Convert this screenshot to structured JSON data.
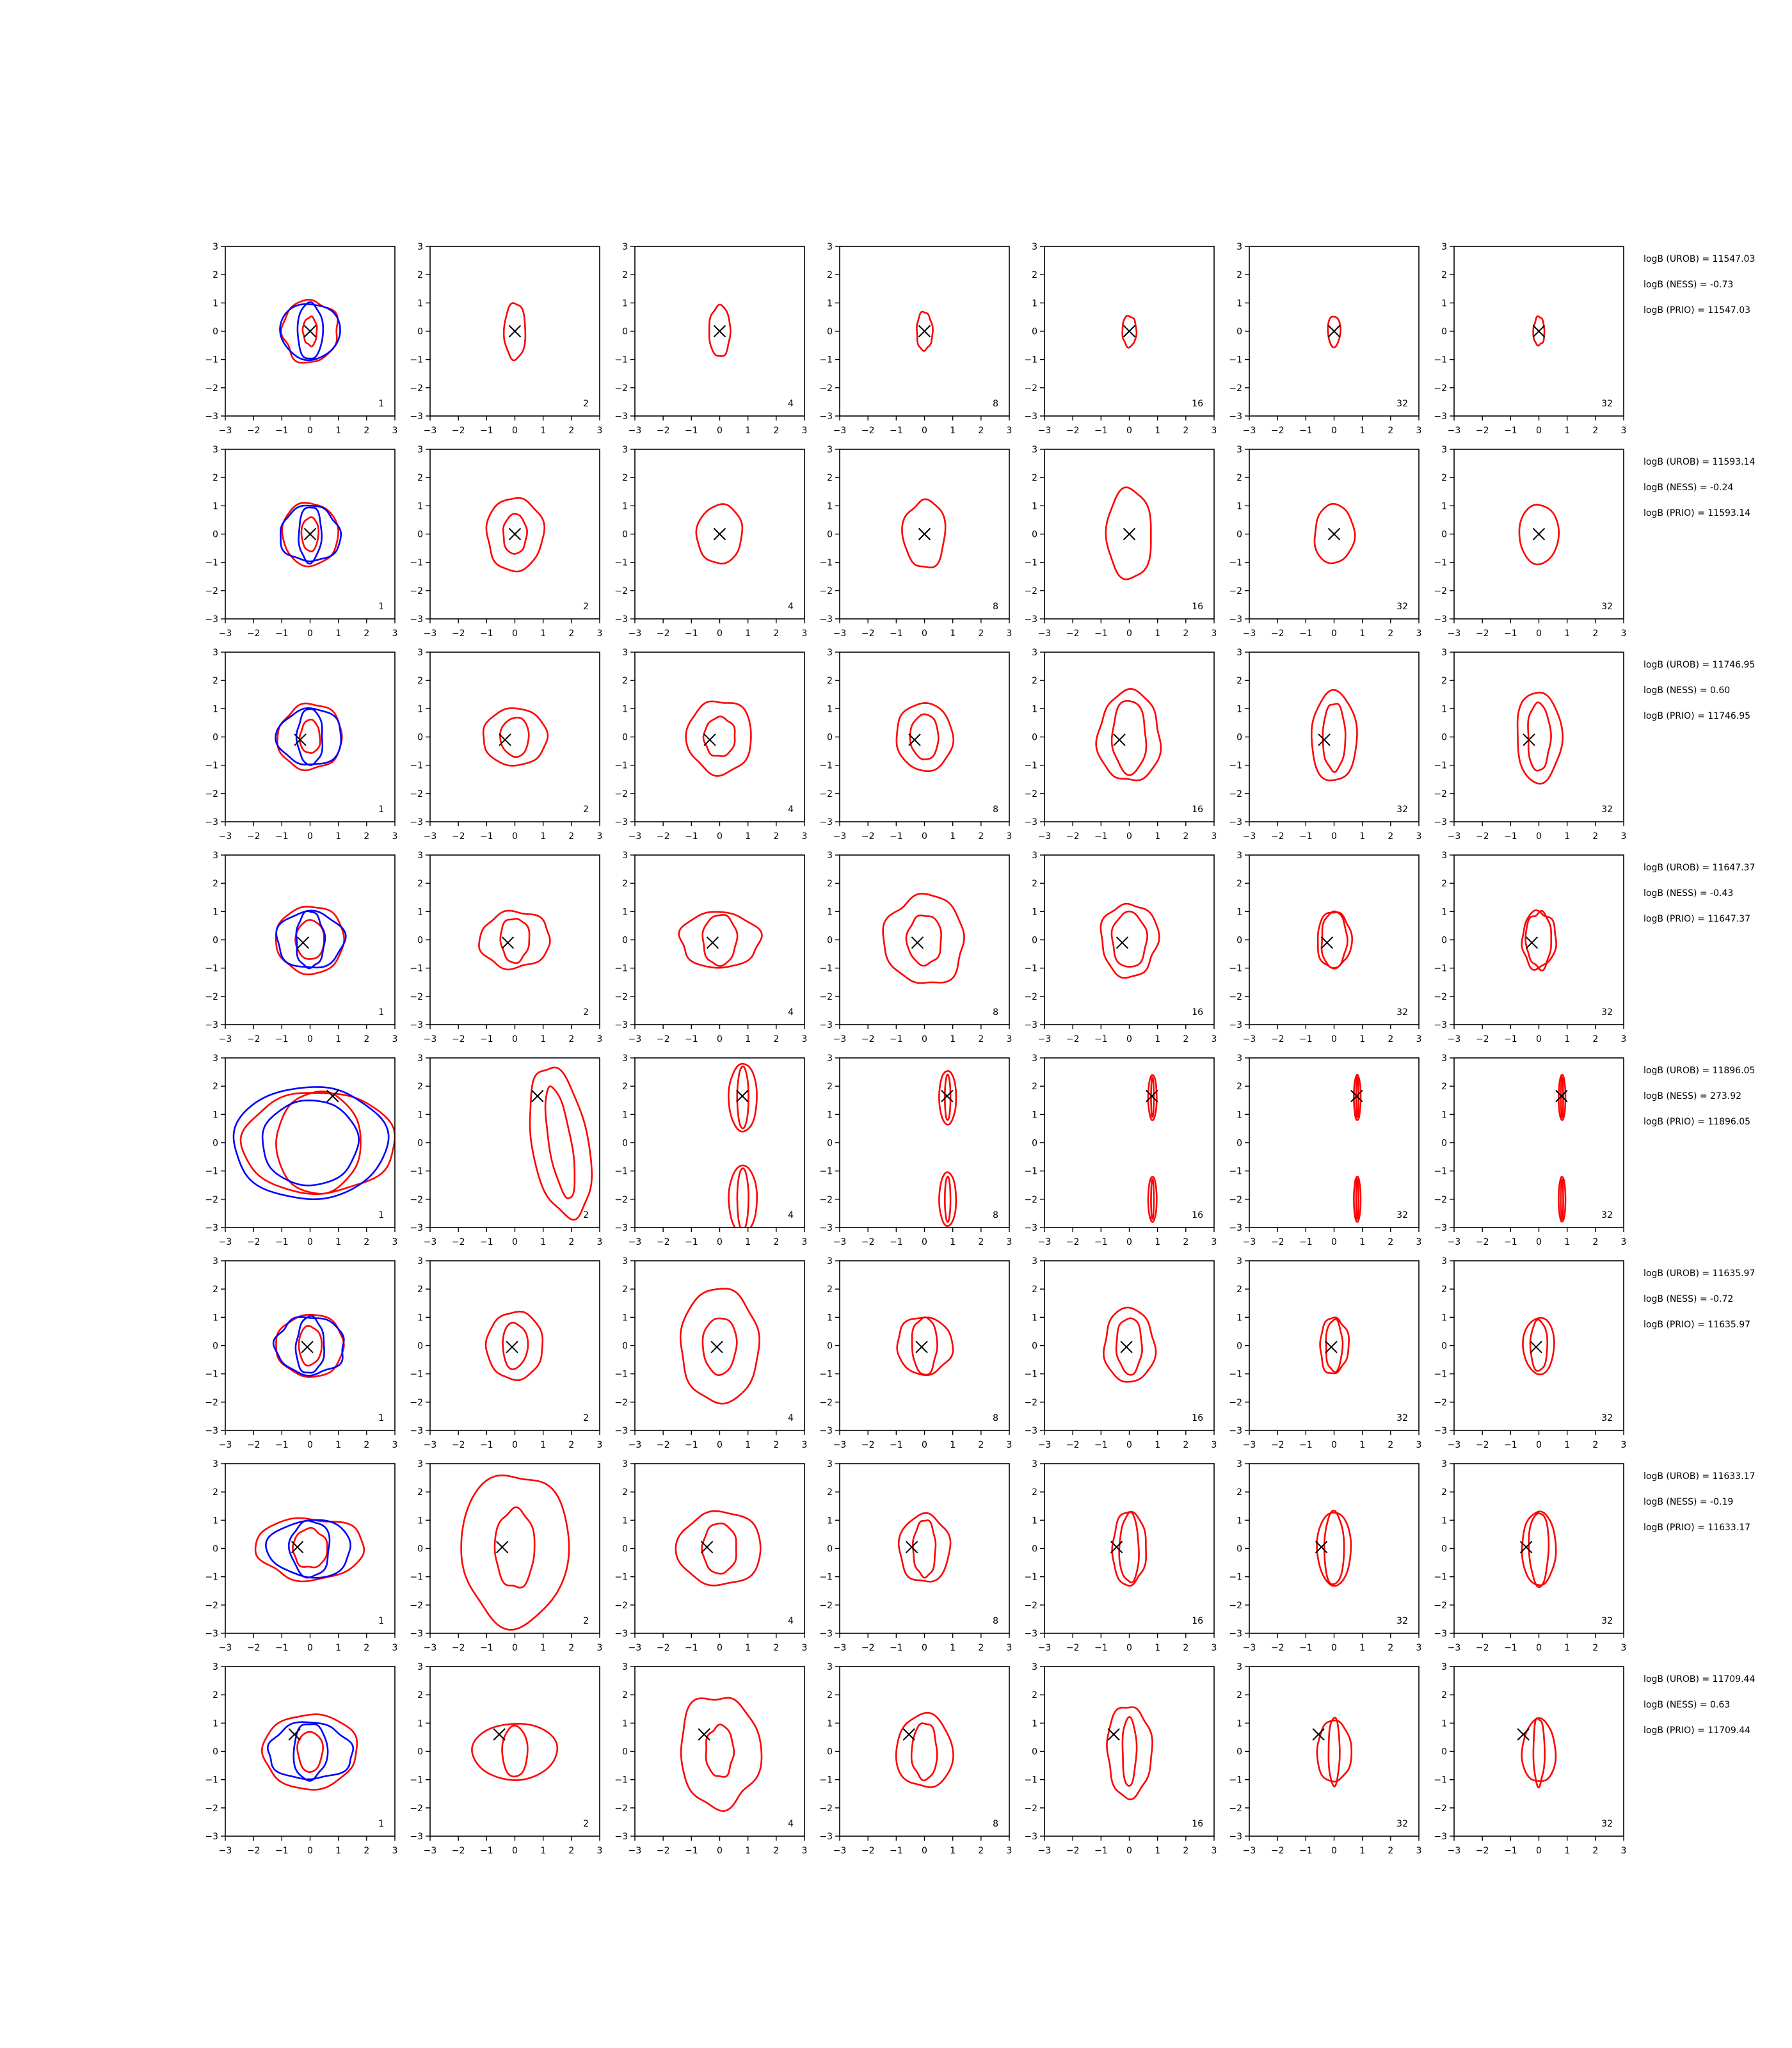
{
  "figure": {
    "rows": 8,
    "cols": 7,
    "xlim": [
      -3,
      3
    ],
    "ylim": [
      -3,
      3
    ],
    "ticks": [
      -3,
      -2,
      -1,
      0,
      1,
      2,
      3
    ],
    "colors": {
      "prior": "#0000ff",
      "posterior": "#ff0000",
      "marker": "#000000"
    }
  },
  "panel_labels": [
    "1",
    "2",
    "4",
    "8",
    "16",
    "32",
    "32"
  ],
  "chart_data": {
    "type": "contour",
    "rows": [
      {
        "marker": [
          0.0,
          0.0
        ],
        "annotations": [
          "logB (UROB) = 11547.03",
          "logB (NESS) = -0.73",
          "logB (PRIO) = 11547.03"
        ],
        "blue": [
          [
            0.45,
            1.0
          ],
          [
            1.05,
            1.0
          ]
        ],
        "red": [
          [
            [
              0.25,
              0.5
            ],
            [
              1.0,
              1.08
            ]
          ],
          [
            [
              0.38,
              1.0
            ]
          ],
          [
            [
              0.38,
              0.9
            ]
          ],
          [
            [
              0.28,
              0.68
            ]
          ],
          [
            [
              0.25,
              0.55
            ]
          ],
          [
            [
              0.22,
              0.55
            ]
          ],
          [
            [
              0.2,
              0.5
            ]
          ]
        ]
      },
      {
        "marker": [
          0.0,
          0.0
        ],
        "annotations": [
          "logB (UROB) = 11593.14",
          "logB (NESS) = -0.24",
          "logB (PRIO) = 11593.14"
        ],
        "blue": [
          [
            0.4,
            1.0
          ],
          [
            1.05,
            1.0
          ]
        ],
        "red": [
          [
            [
              0.3,
              0.6
            ],
            [
              1.0,
              1.1
            ]
          ],
          [
            [
              0.42,
              0.7
            ],
            [
              1.0,
              1.3
            ]
          ],
          [
            [
              0.8,
              1.05
            ]
          ],
          [
            [
              0.75,
              1.2
            ]
          ],
          [
            [
              0.8,
              1.6
            ]
          ],
          [
            [
              0.7,
              1.05
            ]
          ],
          [
            [
              0.7,
              1.05
            ]
          ]
        ]
      },
      {
        "marker": [
          -0.35,
          -0.1
        ],
        "annotations": [
          "logB (UROB) = 11746.95",
          "logB (NESS) = 0.60",
          "logB (PRIO) = 11746.95"
        ],
        "blue": [
          [
            0.45,
            1.0
          ],
          [
            1.15,
            1.0
          ]
        ],
        "red": [
          [
            [
              0.35,
              0.6
            ],
            [
              1.15,
              1.15
            ]
          ],
          [
            [
              0.5,
              0.7
            ],
            [
              1.15,
              1.0
            ]
          ],
          [
            [
              0.55,
              0.7
            ],
            [
              1.15,
              1.3
            ]
          ],
          [
            [
              0.5,
              0.8
            ],
            [
              1.0,
              1.2
            ]
          ],
          [
            [
              0.6,
              1.3
            ],
            [
              1.1,
              1.6
            ]
          ],
          [
            [
              0.4,
              1.2
            ],
            [
              0.8,
              1.6
            ]
          ],
          [
            [
              0.4,
              1.2
            ],
            [
              0.8,
              1.6
            ]
          ]
        ]
      },
      {
        "marker": [
          -0.25,
          -0.1
        ],
        "annotations": [
          "logB (UROB) = 11647.37",
          "logB (NESS) = -0.43",
          "logB (PRIO) = 11647.37"
        ],
        "blue": [
          [
            0.5,
            1.0
          ],
          [
            1.2,
            1.0
          ]
        ],
        "red": [
          [
            [
              0.5,
              0.7
            ],
            [
              1.2,
              1.2
            ]
          ],
          [
            [
              0.5,
              0.8
            ],
            [
              1.25,
              1.0
            ]
          ],
          [
            [
              0.6,
              0.9
            ],
            [
              1.4,
              1.0
            ]
          ],
          [
            [
              0.6,
              0.9
            ],
            [
              1.4,
              1.6
            ]
          ],
          [
            [
              0.6,
              1.0
            ],
            [
              1.0,
              1.3
            ]
          ],
          [
            [
              0.45,
              1.0
            ],
            [
              0.6,
              1.0
            ]
          ],
          [
            [
              0.45,
              1.0
            ],
            [
              0.6,
              1.0
            ]
          ]
        ]
      },
      {
        "marker": [
          0.8,
          1.65
        ],
        "annotations": [
          "logB (UROB) = 11896.05",
          "logB (NESS) = 273.92",
          "logB (PRIO) = 11896.05"
        ],
        "blue": [
          [
            1.7,
            1.5
          ],
          [
            2.7,
            2.0
          ]
        ],
        "red": [
          [
            [
              1.5,
              1.8
            ],
            [
              2.7,
              1.8
            ]
          ],
          [
            [
              0.4,
              2.0
            ],
            [
              1.0,
              2.7
            ]
          ],
          [
            [
              0.2,
              1.1
            ],
            [
              0.5,
              1.2
            ]
          ],
          [
            [
              0.1,
              0.8
            ],
            [
              0.3,
              0.95
            ]
          ],
          [
            [
              0.05,
              0.7
            ],
            [
              0.15,
              0.8
            ]
          ],
          [
            [
              0.04,
              0.7
            ],
            [
              0.12,
              0.8
            ]
          ],
          [
            [
              0.04,
              0.7
            ],
            [
              0.12,
              0.8
            ]
          ]
        ]
      },
      {
        "marker": [
          -0.1,
          -0.05
        ],
        "annotations": [
          "logB (UROB) = 11635.97",
          "logB (NESS) = -0.72",
          "logB (PRIO) = 11635.97"
        ],
        "blue": [
          [
            0.5,
            1.0
          ],
          [
            1.25,
            1.0
          ]
        ],
        "red": [
          [
            [
              0.4,
              0.7
            ],
            [
              1.2,
              1.1
            ]
          ],
          [
            [
              0.45,
              0.8
            ],
            [
              1.0,
              1.2
            ]
          ],
          [
            [
              0.6,
              1.0
            ],
            [
              1.4,
              2.0
            ]
          ],
          [
            [
              0.45,
              1.0
            ],
            [
              1.0,
              1.0
            ]
          ],
          [
            [
              0.45,
              1.0
            ],
            [
              0.9,
              1.3
            ]
          ],
          [
            [
              0.3,
              0.9
            ],
            [
              0.5,
              1.0
            ]
          ],
          [
            [
              0.3,
              0.9
            ],
            [
              0.55,
              1.0
            ]
          ]
        ]
      },
      {
        "marker": [
          -0.45,
          0.05
        ],
        "annotations": [
          "logB (UROB) = 11633.17",
          "logB (NESS) = -0.19",
          "logB (PRIO) = 11633.17"
        ],
        "blue": [
          [
            0.7,
            1.0
          ],
          [
            1.5,
            1.0
          ]
        ],
        "red": [
          [
            [
              0.6,
              0.7
            ],
            [
              1.9,
              1.1
            ]
          ],
          [
            [
              0.7,
              1.4
            ],
            [
              1.9,
              2.7
            ]
          ],
          [
            [
              0.6,
              0.9
            ],
            [
              1.5,
              1.3
            ]
          ],
          [
            [
              0.4,
              1.0
            ],
            [
              0.9,
              1.2
            ]
          ],
          [
            [
              0.35,
              1.2
            ],
            [
              0.6,
              1.3
            ]
          ],
          [
            [
              0.35,
              1.3
            ],
            [
              0.6,
              1.3
            ]
          ],
          [
            [
              0.35,
              1.3
            ],
            [
              0.6,
              1.3
            ]
          ]
        ]
      },
      {
        "marker": [
          -0.55,
          0.6
        ],
        "annotations": [
          "logB (UROB) = 11709.44",
          "logB (NESS) = 0.63",
          "logB (PRIO) = 11709.44"
        ],
        "blue": [
          [
            0.6,
            1.0
          ],
          [
            1.5,
            1.0
          ]
        ],
        "red": [
          [
            [
              0.45,
              0.7
            ],
            [
              1.7,
              1.3
            ]
          ],
          [
            [
              0.45,
              0.9
            ],
            [
              1.5,
              1.0
            ]
          ],
          [
            [
              0.5,
              0.9
            ],
            [
              1.4,
              2.0
            ]
          ],
          [
            [
              0.45,
              1.0
            ],
            [
              1.0,
              1.3
            ]
          ],
          [
            [
              0.25,
              1.2
            ],
            [
              0.8,
              1.6
            ]
          ],
          [
            [
              0.2,
              1.2
            ],
            [
              0.6,
              1.1
            ]
          ],
          [
            [
              0.2,
              1.2
            ],
            [
              0.6,
              1.1
            ]
          ]
        ]
      }
    ]
  }
}
